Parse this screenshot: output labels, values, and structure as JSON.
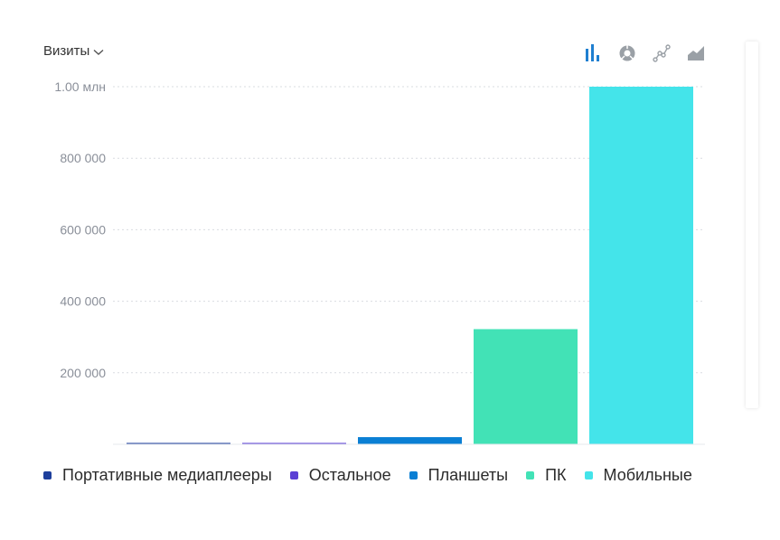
{
  "header": {
    "metric_label": "Визиты"
  },
  "toolbar": {
    "icons": [
      "bar-chart-icon",
      "pie-chart-icon",
      "line-chart-icon",
      "area-chart-icon"
    ],
    "active": "bar-chart-icon"
  },
  "colors": {
    "active_icon": "#1f7fd0",
    "inactive_icon": "#9aa0a6"
  },
  "chart_data": {
    "type": "bar",
    "categories": [
      "Портативные медиаплееры",
      "Остальное",
      "Планшеты",
      "ПК",
      "Мобильные"
    ],
    "values": [
      2500,
      2500,
      20000,
      322000,
      1000000
    ],
    "colors": [
      "#1e3f9c",
      "#5b3fd4",
      "#0a7fd4",
      "#42e2b6",
      "#44e4ea"
    ],
    "ylim": [
      0,
      1000000
    ],
    "y_ticks": [
      {
        "value": 200000,
        "label": "200 000"
      },
      {
        "value": 400000,
        "label": "400 000"
      },
      {
        "value": 600000,
        "label": "600 000"
      },
      {
        "value": 800000,
        "label": "800 000"
      },
      {
        "value": 1000000,
        "label": "1.00 млн"
      }
    ],
    "grid": true,
    "legend": "bottom"
  }
}
